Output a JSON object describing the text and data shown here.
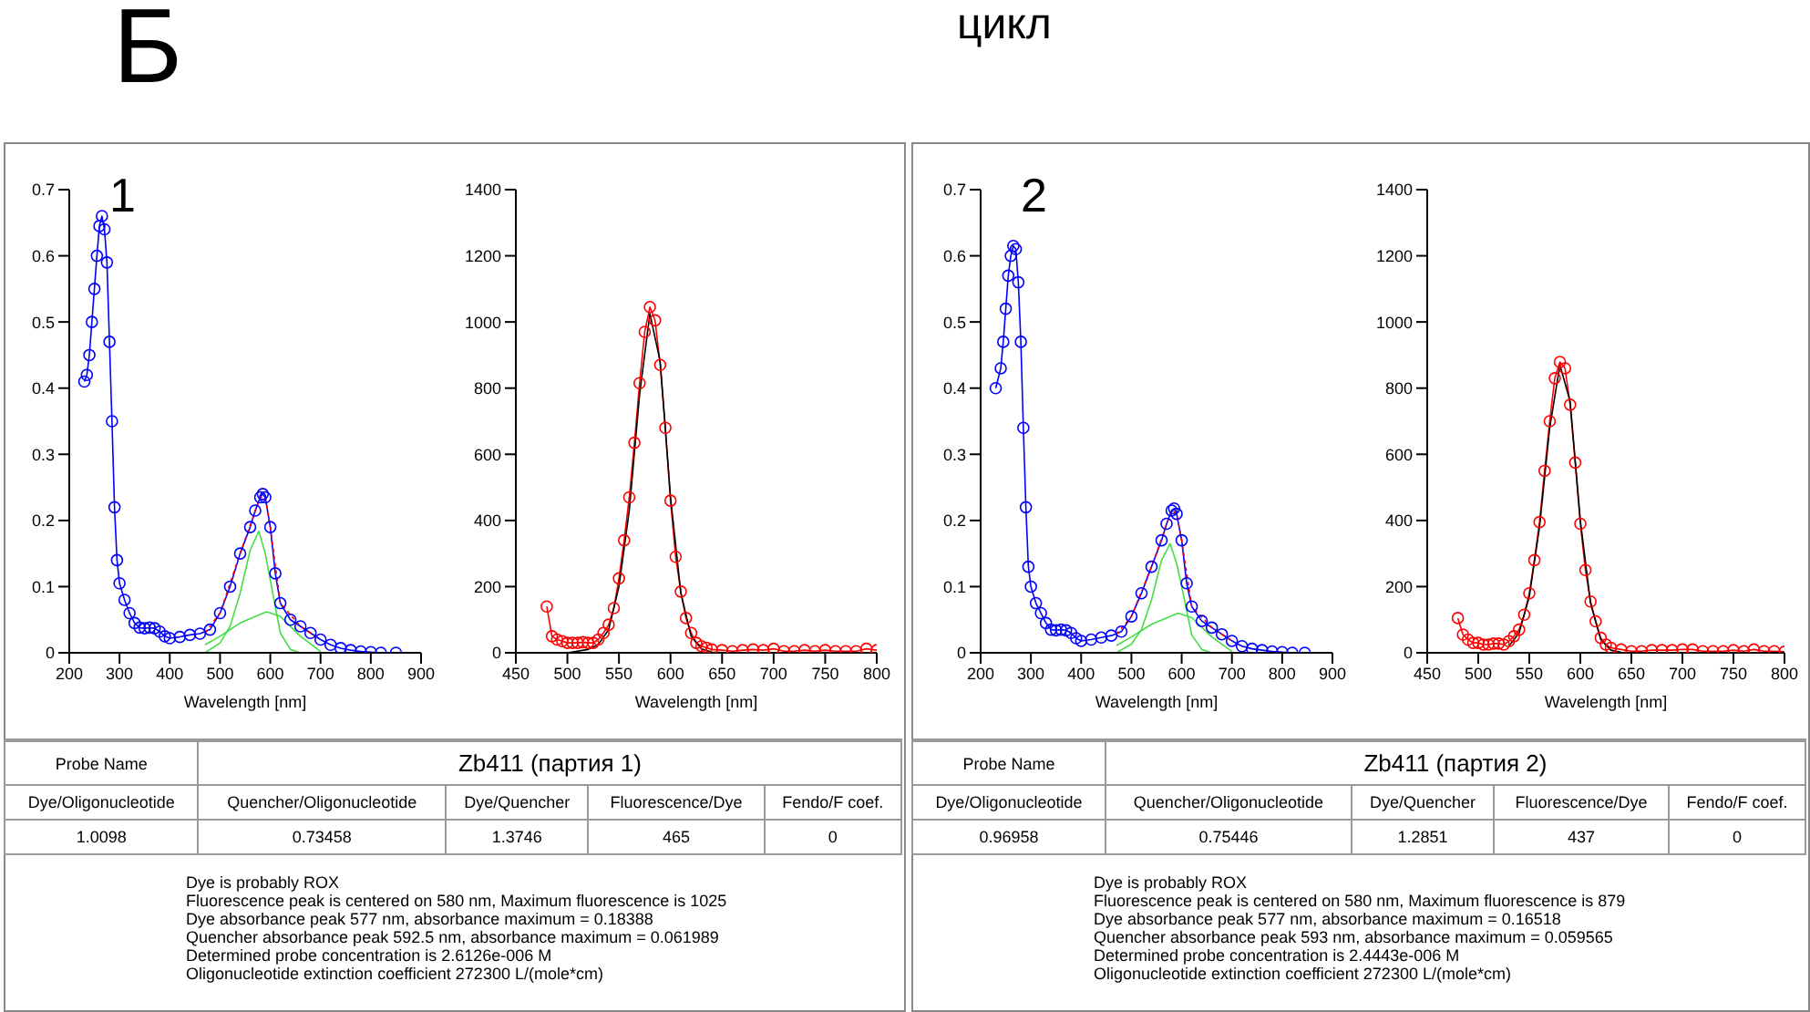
{
  "chart_data": [
    {
      "type": "other",
      "title": "Б",
      "annotations": [
        "цикл"
      ]
    },
    {
      "type": "line",
      "xlabel": "Wavelength [nm]",
      "xlim": [
        200,
        900
      ],
      "xticks": [
        200,
        300,
        400,
        500,
        600,
        700,
        800,
        900
      ],
      "ylim": [
        0,
        0.7
      ],
      "yticks": [
        0,
        0.1,
        0.2,
        0.3,
        0.4,
        0.5,
        0.6,
        0.7
      ],
      "annotations": [
        "1"
      ],
      "series": [
        {
          "color": "#0000ff",
          "marker": "circle",
          "x": [
            230,
            235,
            240,
            245,
            250,
            255,
            260,
            265,
            270,
            275,
            280,
            285,
            290,
            295,
            300,
            310,
            320,
            330,
            340,
            350,
            360,
            370,
            380,
            390,
            400,
            420,
            440,
            460,
            480,
            500,
            520,
            540,
            560,
            570,
            580,
            585,
            590,
            600,
            610,
            620,
            640,
            660,
            680,
            700,
            720,
            740,
            760,
            780,
            800,
            820,
            850
          ],
          "values": [
            0.41,
            0.42,
            0.45,
            0.5,
            0.55,
            0.6,
            0.645,
            0.66,
            0.64,
            0.59,
            0.47,
            0.35,
            0.22,
            0.14,
            0.105,
            0.08,
            0.06,
            0.045,
            0.038,
            0.037,
            0.038,
            0.037,
            0.032,
            0.025,
            0.022,
            0.024,
            0.027,
            0.029,
            0.035,
            0.06,
            0.1,
            0.15,
            0.19,
            0.215,
            0.235,
            0.24,
            0.235,
            0.19,
            0.12,
            0.075,
            0.05,
            0.04,
            0.03,
            0.02,
            0.012,
            0.007,
            0.004,
            0.002,
            0.001,
            0,
            0
          ]
        },
        {
          "color": "#ff0000",
          "marker": "none",
          "line_style": "dotted",
          "x": [
            470,
            500,
            540,
            580,
            590,
            600,
            620,
            660,
            700
          ],
          "values": [
            0.03,
            0.06,
            0.15,
            0.235,
            0.235,
            0.19,
            0.075,
            0.04,
            0.02
          ]
        },
        {
          "color": "#44dd44",
          "marker": "none",
          "x": [
            470,
            500,
            520,
            540,
            560,
            577,
            590,
            600,
            620,
            640,
            660,
            700
          ],
          "values": [
            0,
            0.015,
            0.04,
            0.09,
            0.155,
            0.184,
            0.15,
            0.11,
            0.03,
            0.005,
            0,
            0
          ]
        },
        {
          "color": "#44dd44",
          "marker": "none",
          "x": [
            470,
            500,
            540,
            592.5,
            620,
            660,
            700
          ],
          "values": [
            0.012,
            0.025,
            0.045,
            0.062,
            0.055,
            0.025,
            0.002
          ]
        }
      ]
    },
    {
      "type": "line",
      "xlabel": "Wavelength [nm]",
      "xlim": [
        450,
        800
      ],
      "xticks": [
        450,
        500,
        550,
        600,
        650,
        700,
        750,
        800
      ],
      "ylim": [
        0,
        1400
      ],
      "yticks": [
        0,
        200,
        400,
        600,
        800,
        1000,
        1200,
        1400
      ],
      "series": [
        {
          "color": "#ff0000",
          "marker": "circle",
          "x": [
            480,
            485,
            490,
            495,
            500,
            505,
            510,
            515,
            520,
            525,
            530,
            535,
            540,
            545,
            550,
            555,
            560,
            565,
            570,
            575,
            580,
            585,
            590,
            595,
            600,
            605,
            610,
            615,
            620,
            625,
            630,
            635,
            640,
            650,
            660,
            670,
            680,
            690,
            700,
            710,
            720,
            730,
            740,
            750,
            760,
            770,
            780,
            790,
            800
          ],
          "values": [
            140,
            50,
            40,
            35,
            30,
            30,
            30,
            32,
            30,
            30,
            40,
            60,
            85,
            135,
            225,
            340,
            470,
            635,
            815,
            970,
            1045,
            1005,
            870,
            680,
            460,
            290,
            185,
            105,
            60,
            30,
            20,
            15,
            10,
            8,
            5,
            8,
            10,
            8,
            12,
            5,
            5,
            8,
            5,
            8,
            5,
            5,
            5,
            12,
            8
          ]
        },
        {
          "color": "#000000",
          "marker": "none",
          "x": [
            500,
            520,
            530,
            540,
            550,
            560,
            570,
            580,
            590,
            600,
            610,
            620,
            630,
            640,
            660,
            800
          ],
          "values": [
            0,
            10,
            25,
            70,
            200,
            430,
            780,
            1025,
            880,
            470,
            180,
            50,
            12,
            2,
            0,
            0
          ]
        }
      ]
    },
    {
      "type": "other",
      "annotations": [
        "Probe Name",
        "Zb411 (партия 1)",
        "Dye/Oligonucleotide",
        "Quencher/Oligonucleotide",
        "Dye/Quencher",
        "Fluorescence/Dye",
        "Fendo/F coef.",
        "1.0098",
        "0.73458",
        "1.3746",
        "465",
        "0",
        "Dye is probably ROX",
        "Fluorescence peak is centered on 580 nm, Maximum fluorescence is 1025",
        "Dye absorbance peak 577 nm, absorbance maximum = 0.18388",
        "Quencher absorbance peak 592.5 nm, absorbance maximum = 0.061989",
        "Determined probe concentration is 2.6126e-006 M",
        "Oligonucleotide extinction coefficient 272300 L/(mole*cm)"
      ]
    },
    {
      "type": "line",
      "xlabel": "Wavelength [nm]",
      "xlim": [
        200,
        900
      ],
      "xticks": [
        200,
        300,
        400,
        500,
        600,
        700,
        800,
        900
      ],
      "ylim": [
        0,
        0.7
      ],
      "yticks": [
        0,
        0.1,
        0.2,
        0.3,
        0.4,
        0.5,
        0.6,
        0.7
      ],
      "annotations": [
        "2"
      ],
      "series": [
        {
          "color": "#0000ff",
          "marker": "circle",
          "x": [
            230,
            240,
            245,
            250,
            255,
            260,
            265,
            270,
            275,
            280,
            285,
            290,
            295,
            300,
            310,
            320,
            330,
            340,
            350,
            360,
            370,
            380,
            390,
            400,
            420,
            440,
            460,
            480,
            500,
            520,
            540,
            560,
            570,
            580,
            585,
            590,
            600,
            610,
            620,
            640,
            660,
            680,
            700,
            720,
            740,
            760,
            780,
            800,
            820,
            845
          ],
          "values": [
            0.4,
            0.43,
            0.47,
            0.52,
            0.57,
            0.6,
            0.615,
            0.61,
            0.56,
            0.47,
            0.34,
            0.22,
            0.13,
            0.1,
            0.075,
            0.06,
            0.045,
            0.035,
            0.034,
            0.035,
            0.034,
            0.03,
            0.022,
            0.018,
            0.02,
            0.023,
            0.026,
            0.032,
            0.055,
            0.09,
            0.13,
            0.17,
            0.195,
            0.215,
            0.218,
            0.21,
            0.17,
            0.105,
            0.07,
            0.048,
            0.038,
            0.028,
            0.018,
            0.01,
            0.006,
            0.004,
            0.002,
            0.001,
            0,
            0
          ]
        },
        {
          "color": "#ff0000",
          "marker": "none",
          "line_style": "dotted",
          "x": [
            470,
            500,
            540,
            580,
            590,
            600,
            620,
            660,
            700
          ],
          "values": [
            0.028,
            0.055,
            0.13,
            0.215,
            0.21,
            0.17,
            0.07,
            0.038,
            0.018
          ]
        },
        {
          "color": "#44dd44",
          "marker": "none",
          "x": [
            470,
            500,
            520,
            540,
            560,
            577,
            590,
            600,
            620,
            640,
            660,
            700
          ],
          "values": [
            0,
            0.013,
            0.035,
            0.08,
            0.14,
            0.165,
            0.135,
            0.1,
            0.027,
            0.005,
            0,
            0
          ]
        },
        {
          "color": "#44dd44",
          "marker": "none",
          "x": [
            470,
            500,
            540,
            593,
            620,
            660,
            700
          ],
          "values": [
            0.011,
            0.024,
            0.043,
            0.06,
            0.053,
            0.024,
            0.002
          ]
        }
      ]
    },
    {
      "type": "line",
      "xlabel": "Wavelength [nm]",
      "xlim": [
        450,
        800
      ],
      "xticks": [
        450,
        500,
        550,
        600,
        650,
        700,
        750,
        800
      ],
      "ylim": [
        0,
        1400
      ],
      "yticks": [
        0,
        200,
        400,
        600,
        800,
        1000,
        1200,
        1400
      ],
      "series": [
        {
          "color": "#ff0000",
          "marker": "circle",
          "x": [
            480,
            485,
            490,
            495,
            500,
            505,
            510,
            515,
            520,
            525,
            530,
            535,
            540,
            545,
            550,
            555,
            560,
            565,
            570,
            575,
            580,
            585,
            590,
            595,
            600,
            605,
            610,
            615,
            620,
            625,
            630,
            640,
            650,
            660,
            670,
            680,
            690,
            700,
            710,
            720,
            730,
            740,
            750,
            760,
            770,
            780,
            790,
            800
          ],
          "values": [
            105,
            55,
            40,
            30,
            30,
            25,
            25,
            28,
            28,
            25,
            35,
            50,
            70,
            115,
            180,
            280,
            395,
            550,
            700,
            830,
            879,
            860,
            750,
            575,
            390,
            250,
            155,
            95,
            45,
            25,
            15,
            10,
            5,
            5,
            8,
            8,
            8,
            10,
            10,
            5,
            5,
            5,
            8,
            5,
            10,
            5,
            5,
            3
          ]
        },
        {
          "color": "#000000",
          "marker": "none",
          "x": [
            530,
            540,
            550,
            560,
            570,
            580,
            590,
            600,
            610,
            620,
            630,
            640,
            660,
            800
          ],
          "values": [
            20,
            60,
            170,
            380,
            680,
            870,
            760,
            400,
            150,
            40,
            8,
            1,
            0,
            0
          ]
        }
      ]
    },
    {
      "type": "other",
      "annotations": [
        "Probe Name",
        "Zb411 (партия 2)",
        "Dye/Oligonucleotide",
        "Quencher/Oligonucleotide",
        "Dye/Quencher",
        "Fluorescence/Dye",
        "Fendo/F coef.",
        "0.96958",
        "0.75446",
        "1.2851",
        "437",
        "0",
        "Dye is probably ROX",
        "Fluorescence peak is centered on 580 nm, Maximum fluorescence is 879",
        "Dye absorbance peak 577 nm, absorbance maximum = 0.16518",
        "Quencher absorbance peak 593 nm, absorbance maximum = 0.059565",
        "Determined probe concentration is 2.4443e-006 M",
        "Oligonucleotide extinction coefficient 272300 L/(mole*cm)"
      ]
    }
  ]
}
